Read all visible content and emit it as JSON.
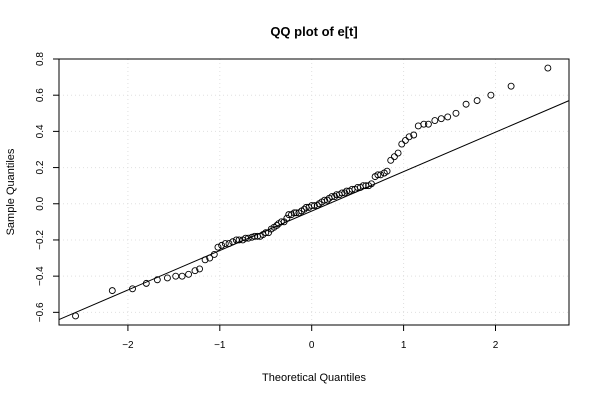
{
  "chart_data": {
    "type": "scatter",
    "title": "QQ plot of e[t]",
    "xlabel": "Theoretical Quantiles",
    "ylabel": "Sample Quantiles",
    "xlim": [
      -2.75,
      2.8
    ],
    "ylim": [
      -0.67,
      0.8
    ],
    "xticks": [
      -2,
      -1,
      0,
      1,
      2
    ],
    "xtick_labels": [
      "−2",
      "−1",
      "0",
      "1",
      "2"
    ],
    "yticks": [
      -0.6,
      -0.4,
      -0.2,
      0.0,
      0.2,
      0.4,
      0.6,
      0.8
    ],
    "ytick_labels": [
      "−0.6",
      "−0.4",
      "−0.2",
      "0.0",
      "0.2",
      "0.4",
      "0.6",
      "0.8"
    ],
    "grid": true,
    "line_color": "#000000",
    "point_color": "#000000",
    "reference_line": {
      "x": [
        -2.75,
        2.8
      ],
      "y": [
        -0.64,
        0.57
      ]
    },
    "x": [
      -2.57,
      -2.17,
      -1.95,
      -1.8,
      -1.68,
      -1.57,
      -1.48,
      -1.41,
      -1.34,
      -1.27,
      -1.22,
      -1.16,
      -1.11,
      -1.06,
      -1.02,
      -0.98,
      -0.94,
      -0.9,
      -0.86,
      -0.82,
      -0.79,
      -0.75,
      -0.72,
      -0.69,
      -0.65,
      -0.62,
      -0.59,
      -0.56,
      -0.53,
      -0.5,
      -0.47,
      -0.44,
      -0.41,
      -0.38,
      -0.36,
      -0.33,
      -0.3,
      -0.27,
      -0.25,
      -0.22,
      -0.19,
      -0.17,
      -0.14,
      -0.11,
      -0.08,
      -0.06,
      -0.03,
      0.0,
      0.03,
      0.06,
      0.08,
      0.11,
      0.14,
      0.17,
      0.19,
      0.22,
      0.25,
      0.27,
      0.3,
      0.33,
      0.36,
      0.38,
      0.41,
      0.44,
      0.47,
      0.5,
      0.53,
      0.56,
      0.59,
      0.62,
      0.65,
      0.69,
      0.72,
      0.75,
      0.79,
      0.82,
      0.86,
      0.9,
      0.94,
      0.98,
      1.02,
      1.06,
      1.11,
      1.16,
      1.22,
      1.27,
      1.34,
      1.41,
      1.48,
      1.57,
      1.68,
      1.8,
      1.95,
      2.17,
      2.57
    ],
    "y": [
      -0.62,
      -0.48,
      -0.47,
      -0.44,
      -0.42,
      -0.41,
      -0.4,
      -0.4,
      -0.39,
      -0.37,
      -0.36,
      -0.31,
      -0.3,
      -0.28,
      -0.24,
      -0.23,
      -0.22,
      -0.22,
      -0.21,
      -0.2,
      -0.2,
      -0.2,
      -0.19,
      -0.19,
      -0.185,
      -0.18,
      -0.18,
      -0.18,
      -0.17,
      -0.16,
      -0.16,
      -0.14,
      -0.13,
      -0.12,
      -0.11,
      -0.1,
      -0.1,
      -0.08,
      -0.06,
      -0.06,
      -0.05,
      -0.05,
      -0.05,
      -0.04,
      -0.03,
      -0.02,
      -0.02,
      -0.01,
      -0.01,
      -0.01,
      0.0,
      0.01,
      0.02,
      0.02,
      0.03,
      0.04,
      0.04,
      0.05,
      0.05,
      0.06,
      0.06,
      0.07,
      0.07,
      0.08,
      0.08,
      0.09,
      0.09,
      0.1,
      0.1,
      0.1,
      0.11,
      0.15,
      0.16,
      0.16,
      0.17,
      0.18,
      0.24,
      0.26,
      0.28,
      0.33,
      0.35,
      0.37,
      0.38,
      0.43,
      0.44,
      0.44,
      0.46,
      0.47,
      0.48,
      0.5,
      0.55,
      0.57,
      0.6,
      0.65,
      0.75
    ]
  }
}
